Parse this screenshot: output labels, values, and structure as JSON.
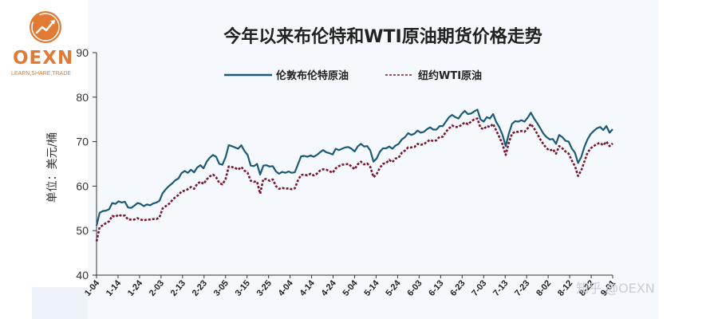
{
  "logo": {
    "brand": "OEXN",
    "tagline": "LEARN,SHARE,TRADE",
    "accent_color": "#e07a35",
    "icon": "trend-arrow-icon"
  },
  "watermark": "知乎 @OEXN",
  "chart_data": {
    "type": "line",
    "title": "今年以来布伦特和WTI原油期货价格走势",
    "ylabel": "单位：美元/桶",
    "xlabel": "",
    "ylim": [
      40,
      90
    ],
    "yticks": [
      40,
      50,
      60,
      70,
      80,
      90
    ],
    "grid": false,
    "legend_position": "top-center",
    "x_tick_labels": [
      "1-04",
      "1-14",
      "1-24",
      "2-03",
      "2-13",
      "2-23",
      "3-05",
      "3-15",
      "3-25",
      "4-04",
      "4-14",
      "4-24",
      "5-04",
      "5-14",
      "5-24",
      "6-03",
      "6-13",
      "6-23",
      "7-03",
      "7-13",
      "7-23",
      "8-02",
      "8-12",
      "8-22",
      "9-01"
    ],
    "series": [
      {
        "name": "伦敦布伦特原油",
        "color": "#1a5a76",
        "style": "solid",
        "values": [
          51.1,
          54.0,
          54.4,
          54.5,
          54.8,
          56.2,
          56.0,
          56.6,
          56.3,
          56.5,
          55.2,
          55.1,
          55.6,
          56.2,
          56.0,
          55.5,
          55.9,
          55.7,
          56.1,
          56.3,
          56.7,
          58.4,
          59.3,
          60.0,
          60.6,
          61.3,
          61.7,
          62.9,
          63.4,
          63.0,
          63.7,
          63.1,
          64.2,
          64.7,
          64.0,
          65.5,
          66.4,
          67.0,
          66.6,
          65.0,
          64.8,
          66.5,
          69.2,
          69.0,
          68.7,
          68.4,
          69.2,
          67.9,
          67.0,
          64.6,
          64.5,
          65.0,
          62.6,
          64.6,
          64.7,
          64.4,
          64.5,
          63.3,
          62.8,
          63.2,
          63.0,
          63.3,
          63.0,
          63.1,
          64.9,
          66.7,
          66.8,
          66.6,
          66.9,
          66.6,
          67.0,
          67.6,
          68.1,
          67.6,
          67.4,
          67.1,
          68.4,
          68.1,
          68.4,
          68.7,
          68.8,
          68.4,
          67.8,
          68.9,
          69.5,
          68.9,
          69.0,
          68.0,
          65.5,
          66.2,
          67.7,
          68.5,
          68.5,
          68.9,
          68.4,
          69.1,
          69.5,
          70.5,
          71.0,
          71.9,
          71.5,
          71.8,
          72.5,
          72.0,
          72.2,
          72.8,
          73.2,
          72.7,
          72.7,
          73.5,
          73.5,
          74.5,
          75.5,
          76.0,
          75.5,
          75.2,
          76.2,
          76.9,
          76.2,
          76.3,
          76.8,
          77.2,
          75.0,
          74.5,
          75.5,
          75.2,
          76.2,
          74.4,
          73.2,
          71.5,
          69.0,
          71.8,
          74.0,
          74.6,
          74.5,
          74.8,
          74.5,
          75.4,
          76.5,
          75.2,
          74.2,
          73.0,
          71.8,
          71.0,
          70.5,
          70.6,
          69.5,
          71.5,
          71.0,
          70.2,
          70.0,
          68.5,
          67.5,
          65.2,
          66.5,
          68.8,
          70.5,
          71.7,
          72.4,
          73.0,
          73.3,
          72.6,
          73.5,
          72.0,
          72.8
        ]
      },
      {
        "name": "纽约WTI原油",
        "color": "#7a1830",
        "style": "dashed",
        "values": [
          47.6,
          50.8,
          51.2,
          51.7,
          52.1,
          53.3,
          53.1,
          53.6,
          53.3,
          53.4,
          52.5,
          52.5,
          52.5,
          52.8,
          52.5,
          52.3,
          52.5,
          52.5,
          52.6,
          52.6,
          53.0,
          55.0,
          55.5,
          56.0,
          56.8,
          57.5,
          58.0,
          58.8,
          59.0,
          59.3,
          59.8,
          59.4,
          60.5,
          61.0,
          60.5,
          61.5,
          62.2,
          62.6,
          62.0,
          60.7,
          60.4,
          61.6,
          64.4,
          64.3,
          64.1,
          63.7,
          64.3,
          63.5,
          63.0,
          61.2,
          61.0,
          61.0,
          58.3,
          61.6,
          61.6,
          61.2,
          61.5,
          60.0,
          59.4,
          59.6,
          59.4,
          59.5,
          59.3,
          59.5,
          61.3,
          62.5,
          62.6,
          62.4,
          62.8,
          62.4,
          62.8,
          63.5,
          63.8,
          63.7,
          63.4,
          63.0,
          64.0,
          64.5,
          64.8,
          64.9,
          65.0,
          64.4,
          63.8,
          64.9,
          65.5,
          64.9,
          65.1,
          64.3,
          62.0,
          62.7,
          64.1,
          65.0,
          65.2,
          65.9,
          65.4,
          66.2,
          66.4,
          67.5,
          68.0,
          68.7,
          68.7,
          68.8,
          69.5,
          69.3,
          69.4,
          70.0,
          70.4,
          70.1,
          70.3,
          71.1,
          71.1,
          72.2,
          73.0,
          73.6,
          73.3,
          73.3,
          73.8,
          74.3,
          73.9,
          74.5,
          75.0,
          75.2,
          73.1,
          72.8,
          73.5,
          73.3,
          74.0,
          72.5,
          71.0,
          69.4,
          67.0,
          69.8,
          71.8,
          72.2,
          72.2,
          72.4,
          72.2,
          73.0,
          74.0,
          73.0,
          71.8,
          70.5,
          69.4,
          68.5,
          68.0,
          68.3,
          67.3,
          69.0,
          68.5,
          67.8,
          67.3,
          65.8,
          64.5,
          62.3,
          63.5,
          65.5,
          67.5,
          68.5,
          69.0,
          69.5,
          69.7,
          69.2,
          70.0,
          69.0,
          69.6
        ]
      }
    ]
  }
}
